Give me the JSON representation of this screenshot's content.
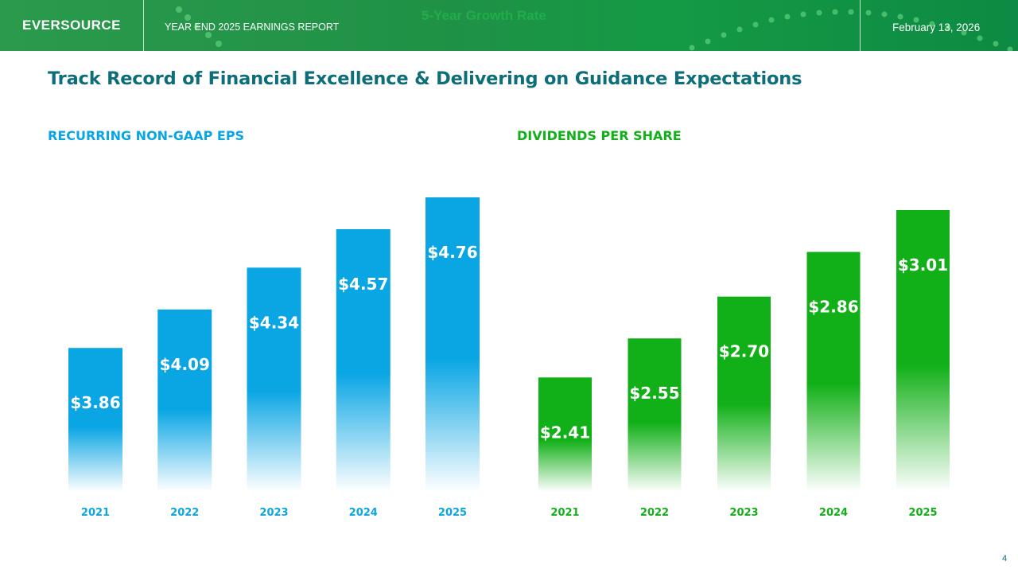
{
  "header": {
    "logo": "EVERSOURCE",
    "report_title": "YEAR END 2025 EARNINGS REPORT",
    "date": "February 13, 2026",
    "ghost_text": "5-Year Growth Rate"
  },
  "page": {
    "title": "Track Record of Financial Excellence & Delivering on Guidance Expectations",
    "number": "4"
  },
  "colors": {
    "eps": "#0aa6e4",
    "dividends": "#12b018",
    "title": "#0d6e7a"
  },
  "chart_data": [
    {
      "type": "bar",
      "title": "RECURRING NON-GAAP EPS",
      "categories": [
        "2021",
        "2022",
        "2023",
        "2024",
        "2025"
      ],
      "values": [
        3.86,
        4.09,
        4.34,
        4.57,
        4.76
      ],
      "labels": [
        "$3.86",
        "$4.09",
        "$4.34",
        "$4.57",
        "$4.76"
      ],
      "ylim": [
        3.0,
        4.76
      ],
      "xlabel": "",
      "ylabel": ""
    },
    {
      "type": "bar",
      "title": "DIVIDENDS PER SHARE",
      "categories": [
        "2021",
        "2022",
        "2023",
        "2024",
        "2025"
      ],
      "values": [
        2.41,
        2.55,
        2.7,
        2.86,
        3.01
      ],
      "labels": [
        "$2.41",
        "$2.55",
        "$2.70",
        "$2.86",
        "$3.01"
      ],
      "ylim": [
        2.0,
        3.01
      ],
      "xlabel": "",
      "ylabel": ""
    }
  ]
}
